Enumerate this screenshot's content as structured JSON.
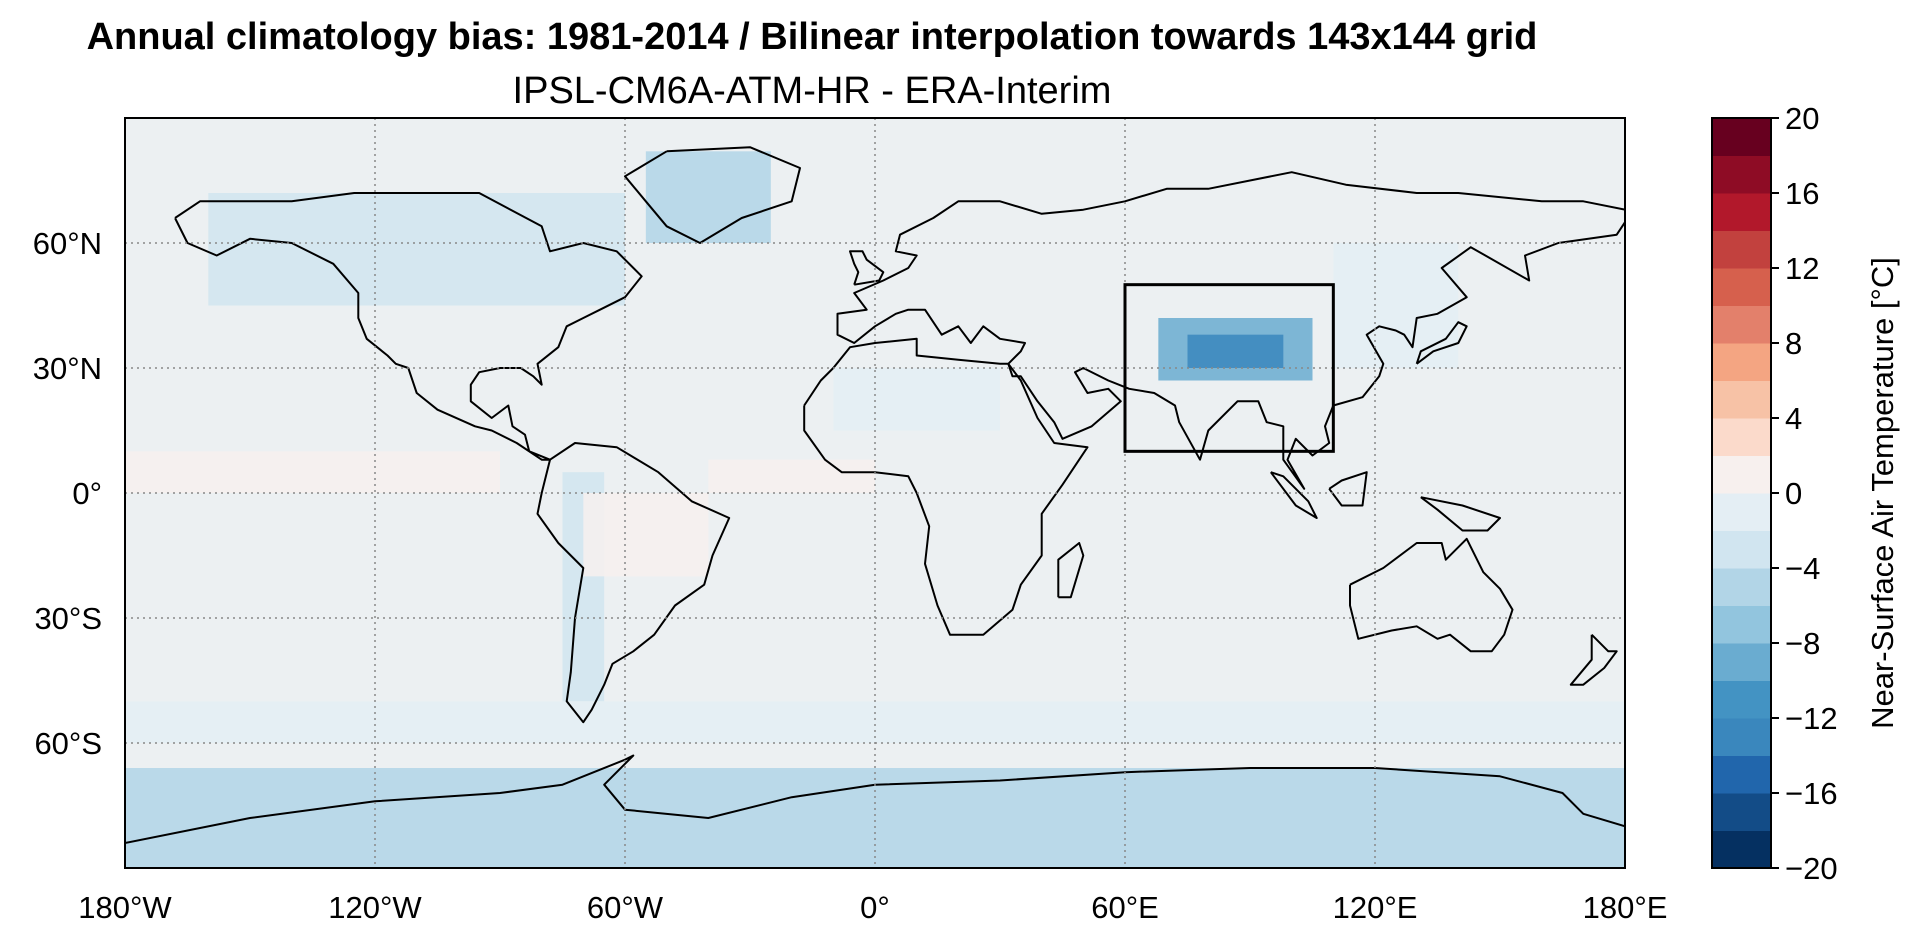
{
  "title": "Annual climatology bias: 1981-2014 / Bilinear interpolation towards 143x144 grid",
  "subtitle": "IPSL-CM6A-ATM-HR - ERA-Interim",
  "map": {
    "projection": "PlateCarree",
    "x_ticks": [
      {
        "lon": -180,
        "label": "180°W"
      },
      {
        "lon": -120,
        "label": "120°W"
      },
      {
        "lon": -60,
        "label": "60°W"
      },
      {
        "lon": 0,
        "label": "0°"
      },
      {
        "lon": 60,
        "label": "60°E"
      },
      {
        "lon": 120,
        "label": "120°E"
      },
      {
        "lon": 180,
        "label": "180°E"
      }
    ],
    "y_ticks": [
      {
        "lat": 60,
        "label": "60°N"
      },
      {
        "lat": 30,
        "label": "30°N"
      },
      {
        "lat": 0,
        "label": "0°"
      },
      {
        "lat": -30,
        "label": "30°S"
      },
      {
        "lat": -60,
        "label": "60°S"
      }
    ],
    "lon_range": [
      -180,
      180
    ],
    "lat_range": [
      -90,
      90
    ],
    "gridlines": "dotted gray at 60° lon / 30° lat",
    "region_box": {
      "lon_min": 60,
      "lon_max": 110,
      "lat_min": 10,
      "lat_max": 50
    },
    "background_color": "#ecf0f2"
  },
  "colorbar": {
    "label": "Near-Surface Air Temperature [°C]",
    "min": -20,
    "max": 20,
    "step": 2,
    "tick_values": [
      -20,
      -16,
      -12,
      -8,
      -4,
      0,
      4,
      8,
      12,
      16,
      20
    ],
    "tick_labels": [
      "−20",
      "−16",
      "−12",
      "−8",
      "−4",
      "0",
      "4",
      "8",
      "12",
      "16",
      "20"
    ],
    "colors": [
      "#053061",
      "#134c87",
      "#2166ac",
      "#3a87bd",
      "#4393c3",
      "#6aacd0",
      "#92c5de",
      "#b2d5e7",
      "#d1e5f0",
      "#e4eef4",
      "#f7f0ee",
      "#fbdacb",
      "#f7c2a6",
      "#f4a582",
      "#e3806b",
      "#d6604d",
      "#c2413e",
      "#b2182b",
      "#8e0c25",
      "#67001f"
    ]
  },
  "anomaly_patches": [
    {
      "name": "tibet",
      "lon": [
        68,
        105
      ],
      "lat": [
        27,
        42
      ],
      "value": -9
    },
    {
      "name": "tibet-core",
      "lon": [
        75,
        98
      ],
      "lat": [
        30,
        38
      ],
      "value": -13
    },
    {
      "name": "antarctica",
      "lon": [
        -180,
        180
      ],
      "lat": [
        -90,
        -66
      ],
      "value": -6
    },
    {
      "name": "greenland",
      "lon": [
        -55,
        -25
      ],
      "lat": [
        60,
        82
      ],
      "value": -5
    },
    {
      "name": "north-america",
      "lon": [
        -160,
        -60
      ],
      "lat": [
        45,
        72
      ],
      "value": -3
    },
    {
      "name": "andes",
      "lon": [
        -75,
        -65
      ],
      "lat": [
        -50,
        5
      ],
      "value": -4
    },
    {
      "name": "east-asia",
      "lon": [
        110,
        140
      ],
      "lat": [
        30,
        60
      ],
      "value": -2
    },
    {
      "name": "tropical-pacific",
      "lon": [
        -180,
        -90
      ],
      "lat": [
        0,
        10
      ],
      "value": 1
    },
    {
      "name": "tropical-atlantic",
      "lon": [
        -40,
        0
      ],
      "lat": [
        0,
        8
      ],
      "value": 1
    },
    {
      "name": "southern-ocean",
      "lon": [
        -180,
        180
      ],
      "lat": [
        -60,
        -50
      ],
      "value": -1
    },
    {
      "name": "amazon",
      "lon": [
        -70,
        -40
      ],
      "lat": [
        -20,
        0
      ],
      "value": 1
    },
    {
      "name": "sahara",
      "lon": [
        -10,
        30
      ],
      "lat": [
        15,
        30
      ],
      "value": -1
    }
  ]
}
